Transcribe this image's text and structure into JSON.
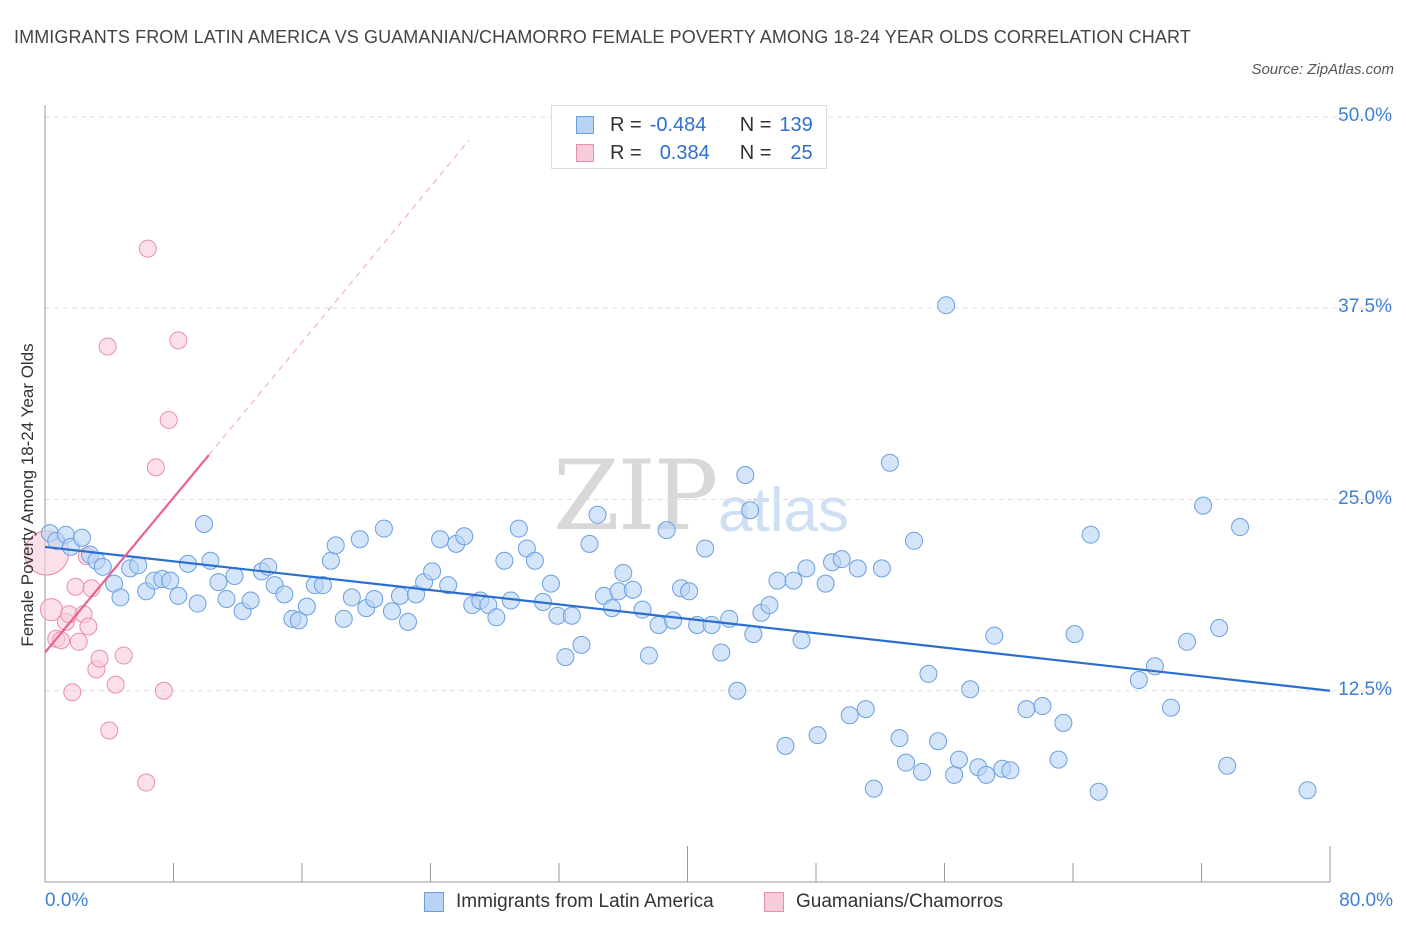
{
  "title": "IMMIGRANTS FROM LATIN AMERICA VS GUAMANIAN/CHAMORRO FEMALE POVERTY AMONG 18-24 YEAR OLDS CORRELATION CHART",
  "source": "Source: ZipAtlas.com",
  "watermark": {
    "zip": "ZIP",
    "atlas": "atlas"
  },
  "legend_top": {
    "rows": [
      {
        "r_label": "R =",
        "r_value": "-0.484",
        "n_label": "N =",
        "n_value": "139"
      },
      {
        "r_label": "R =",
        "r_value": "0.384",
        "n_label": "N =",
        "n_value": "25"
      }
    ]
  },
  "chart_data": {
    "type": "scatter",
    "title": "IMMIGRANTS FROM LATIN AMERICA VS GUAMANIAN/CHAMORRO FEMALE POVERTY AMONG 18-24 YEAR OLDS CORRELATION CHART",
    "xlabel": "",
    "ylabel": "Female Poverty Among 18-24 Year Olds",
    "xlim": [
      0,
      80
    ],
    "ylim": [
      0,
      50
    ],
    "x_tick_labels": [
      "0.0%",
      "80.0%"
    ],
    "y_ticks": [
      12.5,
      25.0,
      37.5,
      50.0
    ],
    "y_tick_labels": [
      "12.5%",
      "25.0%",
      "37.5%",
      "50.0%"
    ],
    "grid": "horizontal dashed",
    "colors": {
      "blue_fill": "#b9d3f5",
      "blue_edge": "#6a9fe0",
      "blue_line": "#2a6fd0",
      "pink_fill": "#f8cbd8",
      "pink_edge": "#ea8fab",
      "pink_line": "#e8638f"
    },
    "series": [
      {
        "name": "Immigrants from Latin America",
        "r": -0.484,
        "n": 139,
        "trend": {
          "x": [
            0,
            80
          ],
          "y": [
            21.9,
            12.5
          ]
        },
        "points": [
          [
            0.3,
            22.8
          ],
          [
            0.7,
            22.3
          ],
          [
            1.3,
            22.7
          ],
          [
            1.6,
            21.9
          ],
          [
            2.3,
            22.5
          ],
          [
            2.8,
            21.4
          ],
          [
            3.2,
            21.0
          ],
          [
            3.6,
            20.6
          ],
          [
            4.3,
            19.5
          ],
          [
            4.7,
            18.6
          ],
          [
            5.3,
            20.5
          ],
          [
            5.8,
            20.7
          ],
          [
            6.3,
            19.0
          ],
          [
            6.8,
            19.7
          ],
          [
            7.3,
            19.8
          ],
          [
            7.8,
            19.7
          ],
          [
            8.3,
            18.7
          ],
          [
            8.9,
            20.8
          ],
          [
            9.5,
            18.2
          ],
          [
            9.9,
            23.4
          ],
          [
            10.3,
            21.0
          ],
          [
            10.8,
            19.6
          ],
          [
            11.3,
            18.5
          ],
          [
            11.8,
            20.0
          ],
          [
            12.3,
            17.7
          ],
          [
            12.8,
            18.4
          ],
          [
            13.5,
            20.3
          ],
          [
            13.9,
            20.6
          ],
          [
            14.3,
            19.4
          ],
          [
            14.9,
            18.8
          ],
          [
            15.4,
            17.2
          ],
          [
            15.8,
            17.1
          ],
          [
            16.3,
            18.0
          ],
          [
            16.8,
            19.4
          ],
          [
            17.3,
            19.4
          ],
          [
            17.8,
            21.0
          ],
          [
            18.1,
            22.0
          ],
          [
            18.6,
            17.2
          ],
          [
            19.1,
            18.6
          ],
          [
            19.6,
            22.4
          ],
          [
            20.0,
            17.9
          ],
          [
            20.5,
            18.5
          ],
          [
            21.1,
            23.1
          ],
          [
            21.6,
            17.7
          ],
          [
            22.1,
            18.7
          ],
          [
            22.6,
            17.0
          ],
          [
            23.1,
            18.8
          ],
          [
            23.6,
            19.6
          ],
          [
            24.1,
            20.3
          ],
          [
            24.6,
            22.4
          ],
          [
            25.1,
            19.4
          ],
          [
            25.6,
            22.1
          ],
          [
            26.1,
            22.6
          ],
          [
            26.6,
            18.1
          ],
          [
            27.1,
            18.4
          ],
          [
            27.6,
            18.1
          ],
          [
            28.1,
            17.3
          ],
          [
            28.6,
            21.0
          ],
          [
            29.0,
            18.4
          ],
          [
            29.5,
            23.1
          ],
          [
            30.0,
            21.8
          ],
          [
            30.5,
            21.0
          ],
          [
            31.0,
            18.3
          ],
          [
            31.5,
            19.5
          ],
          [
            31.9,
            17.4
          ],
          [
            32.4,
            14.7
          ],
          [
            32.8,
            17.4
          ],
          [
            33.4,
            15.5
          ],
          [
            33.9,
            22.1
          ],
          [
            34.4,
            24.0
          ],
          [
            34.8,
            18.7
          ],
          [
            35.3,
            17.9
          ],
          [
            35.7,
            19.0
          ],
          [
            36.0,
            20.2
          ],
          [
            36.6,
            19.1
          ],
          [
            37.2,
            17.8
          ],
          [
            37.6,
            14.8
          ],
          [
            38.2,
            16.8
          ],
          [
            38.7,
            23.0
          ],
          [
            39.1,
            17.1
          ],
          [
            39.6,
            19.2
          ],
          [
            40.1,
            19.0
          ],
          [
            40.6,
            16.8
          ],
          [
            41.1,
            21.8
          ],
          [
            41.5,
            16.8
          ],
          [
            42.1,
            15.0
          ],
          [
            42.6,
            17.2
          ],
          [
            43.1,
            12.5
          ],
          [
            43.6,
            26.6
          ],
          [
            43.9,
            24.3
          ],
          [
            44.1,
            16.2
          ],
          [
            44.6,
            17.6
          ],
          [
            45.1,
            18.1
          ],
          [
            45.6,
            19.7
          ],
          [
            46.1,
            8.9
          ],
          [
            46.6,
            19.7
          ],
          [
            47.1,
            15.8
          ],
          [
            47.4,
            20.5
          ],
          [
            48.1,
            9.6
          ],
          [
            48.6,
            19.5
          ],
          [
            49.0,
            20.9
          ],
          [
            49.6,
            21.1
          ],
          [
            50.1,
            10.9
          ],
          [
            50.6,
            20.5
          ],
          [
            51.1,
            11.3
          ],
          [
            51.6,
            6.1
          ],
          [
            52.1,
            20.5
          ],
          [
            52.6,
            27.4
          ],
          [
            53.2,
            9.4
          ],
          [
            53.6,
            7.8
          ],
          [
            54.1,
            22.3
          ],
          [
            54.6,
            7.2
          ],
          [
            55.0,
            13.6
          ],
          [
            55.6,
            9.2
          ],
          [
            56.1,
            37.7
          ],
          [
            56.6,
            7.0
          ],
          [
            56.9,
            8.0
          ],
          [
            57.6,
            12.6
          ],
          [
            58.1,
            7.5
          ],
          [
            58.6,
            7.0
          ],
          [
            59.1,
            16.1
          ],
          [
            59.6,
            7.4
          ],
          [
            60.1,
            7.3
          ],
          [
            61.1,
            11.3
          ],
          [
            62.1,
            11.5
          ],
          [
            63.1,
            8.0
          ],
          [
            63.4,
            10.4
          ],
          [
            64.1,
            16.2
          ],
          [
            65.1,
            22.7
          ],
          [
            65.6,
            5.9
          ],
          [
            68.1,
            13.2
          ],
          [
            69.1,
            14.1
          ],
          [
            70.1,
            11.4
          ],
          [
            71.1,
            15.7
          ],
          [
            72.1,
            24.6
          ],
          [
            73.1,
            16.6
          ],
          [
            73.6,
            7.6
          ],
          [
            74.4,
            23.2
          ],
          [
            78.6,
            6.0
          ]
        ]
      },
      {
        "name": "Guamanians/Chamorros",
        "r": 0.384,
        "n": 25,
        "trend": {
          "x": [
            0,
            10.2
          ],
          "y": [
            15.0,
            27.9
          ],
          "dashed_extension": {
            "x": [
              10.2,
              26.4
            ],
            "y": [
              27.9,
              48.5
            ]
          }
        },
        "points": [
          [
            0.1,
            21.5
          ],
          [
            0.4,
            17.8
          ],
          [
            0.7,
            15.9
          ],
          [
            1.0,
            15.8
          ],
          [
            1.3,
            17.0
          ],
          [
            1.5,
            17.5
          ],
          [
            1.7,
            12.4
          ],
          [
            1.9,
            19.3
          ],
          [
            2.1,
            15.7
          ],
          [
            2.4,
            17.5
          ],
          [
            2.6,
            21.3
          ],
          [
            2.7,
            16.7
          ],
          [
            2.9,
            19.2
          ],
          [
            3.2,
            13.9
          ],
          [
            3.4,
            14.6
          ],
          [
            3.9,
            35.0
          ],
          [
            4.0,
            9.9
          ],
          [
            4.4,
            12.9
          ],
          [
            4.9,
            14.8
          ],
          [
            6.3,
            6.5
          ],
          [
            6.4,
            41.4
          ],
          [
            6.9,
            27.1
          ],
          [
            7.4,
            12.5
          ],
          [
            7.7,
            30.2
          ],
          [
            8.3,
            35.4
          ]
        ]
      }
    ],
    "legend": {
      "placement": "bottom-center",
      "entries": [
        "Immigrants from Latin America",
        "Guamanians/Chamorros"
      ]
    }
  }
}
